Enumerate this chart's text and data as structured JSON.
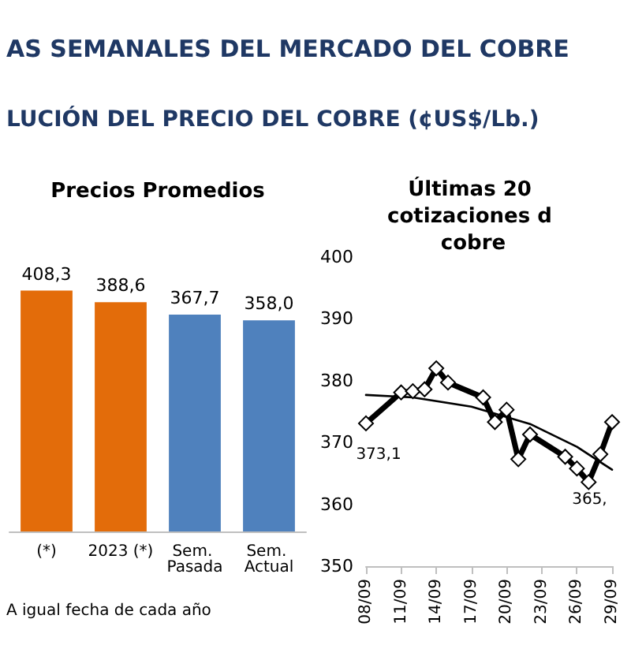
{
  "chart_data": [
    {
      "type": "bar",
      "title": "Precios Promedios",
      "categories": [
        "(*)",
        "2023 (*)",
        "Sem. Pasada",
        "Sem. Actual"
      ],
      "values": [
        408.3,
        388.6,
        367.7,
        358.0
      ],
      "colors": [
        "#e36c0a",
        "#e36c0a",
        "#4f81bd",
        "#4f81bd"
      ],
      "value_labels": [
        "408,3",
        "388,6",
        "367,7",
        "358,0"
      ],
      "annotations": [
        "AS SEMANALES DEL MERCADO DEL COBRE",
        "LUCIÓN DEL PRECIO DEL COBRE (¢US$/Lb.)",
        "A igual fecha de cada año"
      ]
    },
    {
      "type": "line",
      "title": "Últimas 20 cotizaciones d cobre",
      "series": [
        {
          "color": "#000000",
          "marker": "diamond",
          "x": [
            "--09-08",
            "--09-11",
            "--09-12",
            "--09-13",
            "--09-14",
            "--09-15",
            "--09-18",
            "--09-19",
            "--09-20",
            "--09-21",
            "--09-22",
            "--09-25",
            "--09-26",
            "--09-27",
            "--09-28",
            "--09-29"
          ],
          "values": [
            373.1,
            378.1,
            378.3,
            378.6,
            382.0,
            379.7,
            377.3,
            373.3,
            375.3,
            367.3,
            371.3,
            367.7,
            365.8,
            363.6,
            368.1,
            373.3
          ]
        },
        {
          "color": "#000000",
          "marker": "none",
          "x": [
            "--09-08",
            "--09-12",
            "--09-17",
            "--09-22",
            "--09-26",
            "--09-29"
          ],
          "values": [
            377.7,
            377.3,
            375.8,
            373.0,
            369.3,
            365.6
          ]
        }
      ],
      "xlim": [
        "--09-08",
        "--09-29"
      ],
      "xticks": [
        {
          "value": "--09-08",
          "label": "08/09"
        },
        {
          "value": "--09-11",
          "label": "11/09"
        },
        {
          "value": "--09-14",
          "label": "14/09"
        },
        {
          "value": "--09-17",
          "label": "17/09"
        },
        {
          "value": "--09-20",
          "label": "20/09"
        },
        {
          "value": "--09-23",
          "label": "23/09"
        },
        {
          "value": "--09-26",
          "label": "26/09"
        },
        {
          "value": "--09-29",
          "label": "29/09"
        }
      ],
      "ylim": [
        350,
        400
      ],
      "yticks": [
        350,
        360,
        370,
        380,
        390,
        400
      ],
      "annotations": [
        {
          "text": "373,1",
          "x": "--09-08",
          "y": 373.1
        },
        {
          "text": "365,",
          "x": "--09-26",
          "y": 365.8
        }
      ]
    }
  ]
}
